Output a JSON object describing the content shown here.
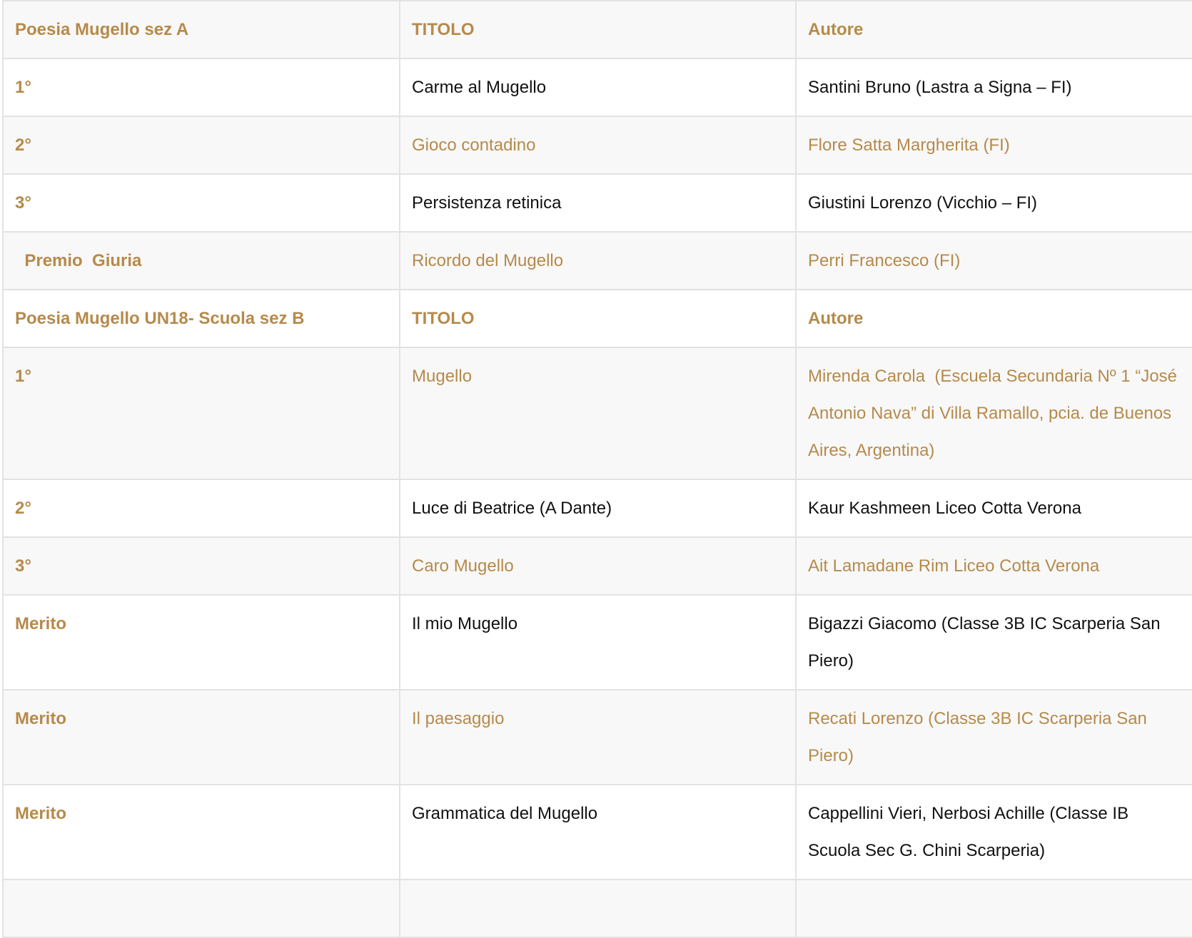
{
  "accent_color": "#b68a4b",
  "rows": [
    {
      "type": "head",
      "cells": [
        "Poesia Mugello sez A",
        "TITOLO",
        "Autore"
      ]
    },
    {
      "type": "row",
      "cells": [
        "1°",
        "Carme al Mugello",
        "Santini Bruno (Lastra a Signa – FI)"
      ]
    },
    {
      "type": "row",
      "cells": [
        "2°",
        "Gioco contadino",
        "Flore Satta Margherita (FI)"
      ]
    },
    {
      "type": "row",
      "cells": [
        "3°",
        "Persistenza retinica",
        "Giustini Lorenzo (Vicchio – FI)"
      ]
    },
    {
      "type": "row",
      "cells": [
        "  Premio  Giuria",
        "Ricordo del Mugello",
        "Perri Francesco (FI)"
      ]
    },
    {
      "type": "head",
      "cells": [
        "Poesia Mugello UN18- Scuola sez B",
        "TITOLO",
        "Autore"
      ]
    },
    {
      "type": "row",
      "cells": [
        "1°",
        "Mugello",
        "Mirenda Carola  (Escuela Secundaria Nº 1 “José Antonio Nava” di Villa Ramallo, pcia. de Buenos Aires, Argentina)"
      ]
    },
    {
      "type": "row",
      "cells": [
        "2°",
        "Luce di Beatrice (A Dante)",
        "Kaur Kashmeen Liceo Cotta Verona"
      ]
    },
    {
      "type": "row",
      "cells": [
        "3°",
        "Caro Mugello",
        "Ait Lamadane Rim Liceo Cotta Verona"
      ]
    },
    {
      "type": "row",
      "cells": [
        "Merito",
        "Il mio Mugello",
        "Bigazzi Giacomo (Classe 3B IC Scarperia San Piero)"
      ]
    },
    {
      "type": "row",
      "cells": [
        "Merito",
        "Il paesaggio",
        "Recati Lorenzo (Classe 3B IC Scarperia San Piero)"
      ]
    },
    {
      "type": "row",
      "cells": [
        "Merito",
        "Grammatica del Mugello",
        "Cappellini Vieri, Nerbosi Achille (Classe IB Scuola Sec G. Chini Scarperia)"
      ]
    }
  ]
}
